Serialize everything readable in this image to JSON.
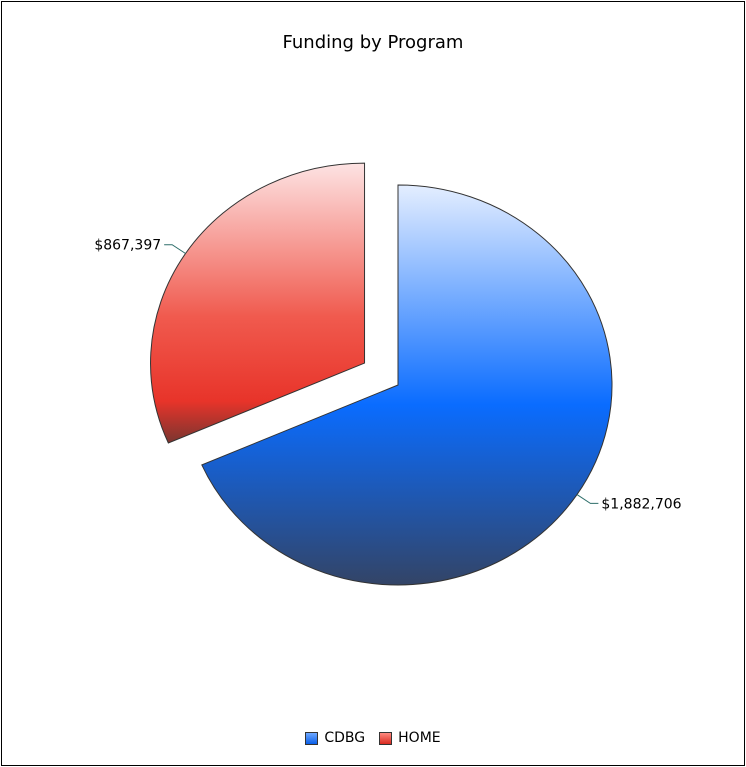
{
  "chart_data": {
    "type": "pie",
    "title": "Funding by Program",
    "slices": [
      {
        "name": "CDBG",
        "value": 1882706,
        "label": "$1,882,706",
        "color": "#1f6fff",
        "exploded": false
      },
      {
        "name": "HOME",
        "value": 867397,
        "label": "$867,397",
        "color": "#e8342a",
        "exploded": true
      }
    ],
    "legend": {
      "position": "bottom",
      "items": [
        {
          "label": "CDBG",
          "color": "#1f6fff"
        },
        {
          "label": "HOME",
          "color": "#e8342a"
        }
      ]
    }
  }
}
